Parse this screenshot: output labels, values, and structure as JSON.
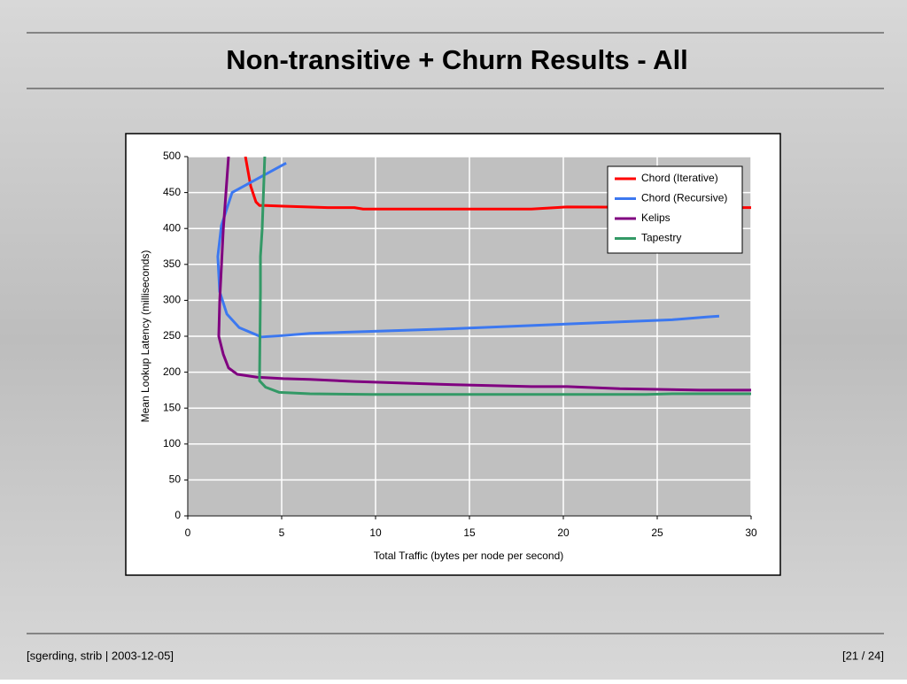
{
  "slide": {
    "title": "Non-transitive + Churn Results - All",
    "footer_left": "[sgerding, strib | 2003-12-05]",
    "footer_right": "[21 / 24]"
  },
  "chart_data": {
    "type": "line",
    "x_label": "Total Traffic (bytes per node per second)",
    "y_label": "Mean Lookup Latency (milliseconds)",
    "xlim": [
      0,
      30
    ],
    "xticks": [
      0,
      5,
      10,
      15,
      20,
      25,
      30
    ],
    "ylim": [
      0,
      500
    ],
    "yticks": [
      0,
      50,
      100,
      150,
      200,
      250,
      300,
      350,
      400,
      450,
      500
    ],
    "grid": true,
    "legend": "upper-right",
    "series": [
      {
        "name": "Chord (Iterative)",
        "color": "#ff0000",
        "x": [
          3.07,
          3.35,
          3.63,
          3.82,
          4.15,
          5.09,
          7.45,
          8.87,
          9.34,
          18.3,
          20.2,
          30
        ],
        "values": [
          500,
          459,
          437,
          432,
          432,
          431,
          429,
          429,
          427,
          427,
          430,
          429
        ]
      },
      {
        "name": "Chord (Recursive)",
        "color": "#3c78f0",
        "x": [
          5.24,
          2.36,
          1.79,
          1.6,
          1.7,
          2.08,
          2.74,
          3.92,
          5.09,
          6.5,
          8.87,
          13.6,
          18.3,
          23.0,
          25.8,
          27.7,
          28.3
        ],
        "values": [
          491,
          450,
          404,
          361,
          312,
          281,
          262,
          249,
          251,
          254,
          256,
          260,
          265,
          270,
          273,
          277,
          278
        ]
      },
      {
        "name": "Kelips",
        "color": "#800080",
        "x": [
          2.17,
          1.89,
          1.7,
          1.65,
          1.89,
          2.17,
          2.64,
          3.68,
          5.09,
          6.5,
          8.87,
          13.6,
          18.3,
          20.2,
          23.0,
          27.3,
          30
        ],
        "values": [
          500,
          398,
          299,
          250,
          225,
          206,
          197,
          193,
          191,
          190,
          187,
          183,
          180,
          180,
          177,
          175,
          175
        ]
      },
      {
        "name": "Tapestry",
        "color": "#339966",
        "x": [
          4.1,
          3.96,
          3.87,
          3.87,
          3.82,
          4.15,
          4.86,
          6.5,
          9.81,
          15.9,
          20.7,
          24.4,
          25.8,
          30
        ],
        "values": [
          500,
          398,
          361,
          312,
          188,
          179,
          172,
          170,
          169,
          169,
          169,
          169,
          170,
          170
        ]
      }
    ]
  }
}
